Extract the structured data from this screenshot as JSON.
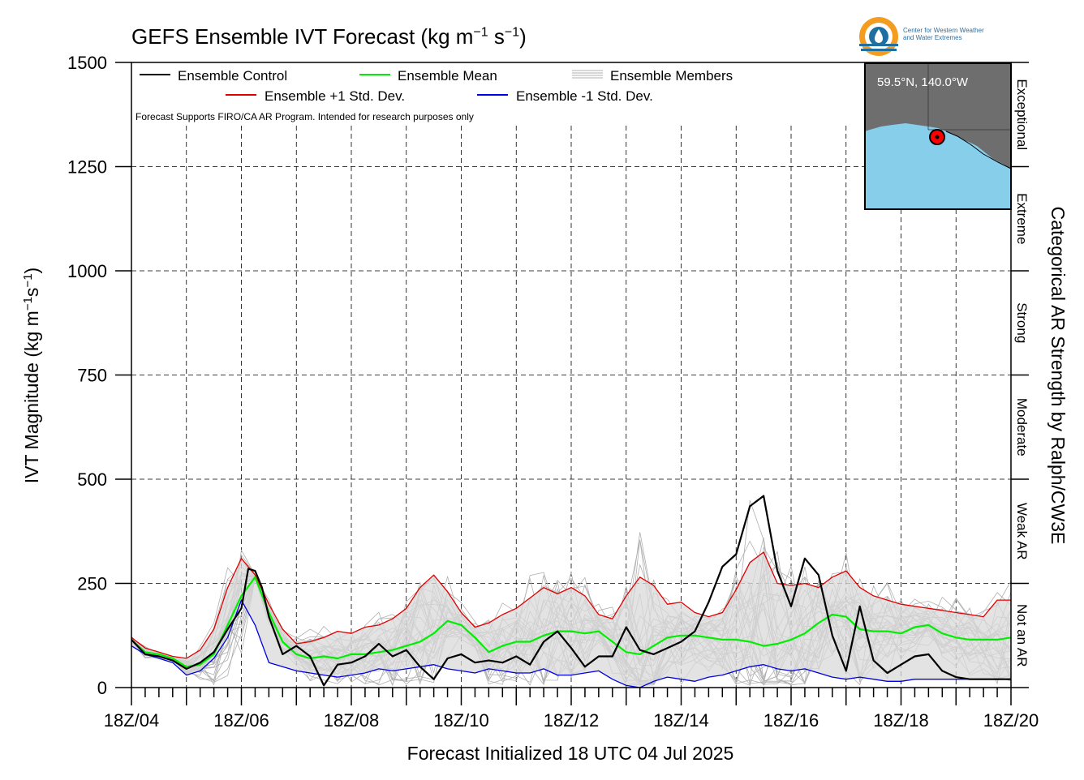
{
  "header": {
    "title_main": "GEFS Ensemble IVT Forecast (kg m",
    "title_exp1": "−1",
    "title_mid": " s",
    "title_exp2": "−1",
    "title_end": ")"
  },
  "logo": {
    "line1": "Center for Western Weather",
    "line2": "and Water Extremes"
  },
  "inset": {
    "location_label": "59.5°N, 140.0°W"
  },
  "colors": {
    "control": "#000000",
    "mean": "#00ee00",
    "plus_std": "#e00000",
    "minus_std": "#0000e0",
    "members": "#b0b0b0",
    "spread_fill": "#d9d9d9",
    "ocean": "#87ceeb",
    "land": "#6e6e6e",
    "logo_orange": "#f39c1f",
    "logo_blue": "#1f6fa0"
  },
  "chart_data": {
    "type": "line",
    "title": "GEFS Ensemble IVT Forecast (kg m−1 s−1)",
    "xlabel": "Forecast Initialized 18 UTC 04 Jul 2025",
    "ylabel": "IVT Magnitude (kg m−1s−1)",
    "right_label": "Categorical AR Strength by Ralph/CW3E",
    "note": "Forecast Supports FIRO/CA AR Program. Intended for research purposes only",
    "xlim": [
      0,
      384
    ],
    "ylim": [
      0,
      1500
    ],
    "x_unit": "forecast hour",
    "yticks": [
      0,
      250,
      500,
      750,
      1000,
      1250,
      1500
    ],
    "xticks": [
      {
        "x": 0,
        "label": "18Z/04"
      },
      {
        "x": 48,
        "label": "18Z/06"
      },
      {
        "x": 96,
        "label": "18Z/08"
      },
      {
        "x": 144,
        "label": "18Z/10"
      },
      {
        "x": 192,
        "label": "18Z/12"
      },
      {
        "x": 240,
        "label": "18Z/14"
      },
      {
        "x": 288,
        "label": "18Z/16"
      },
      {
        "x": 336,
        "label": "18Z/18"
      },
      {
        "x": 384,
        "label": "18Z/20"
      }
    ],
    "categories": [
      {
        "label": "Not an AR",
        "from": 0,
        "to": 250
      },
      {
        "label": "Weak AR",
        "from": 250,
        "to": 500
      },
      {
        "label": "Moderate",
        "from": 500,
        "to": 750
      },
      {
        "label": "Strong",
        "from": 750,
        "to": 1000
      },
      {
        "label": "Extreme",
        "from": 1000,
        "to": 1250
      },
      {
        "label": "Exceptional",
        "from": 1250,
        "to": 1500
      }
    ],
    "legend": [
      {
        "name": "Ensemble Control",
        "key": "control"
      },
      {
        "name": "Ensemble Mean",
        "key": "mean"
      },
      {
        "name": "Ensemble Members",
        "key": "members"
      },
      {
        "name": "Ensemble +1 Std. Dev.",
        "key": "plus_std"
      },
      {
        "name": "Ensemble -1 Std. Dev.",
        "key": "minus_std"
      }
    ],
    "series": [
      {
        "key": "control",
        "x": [
          0,
          6,
          12,
          18,
          24,
          30,
          36,
          42,
          48,
          51,
          54,
          57,
          60,
          66,
          72,
          78,
          84,
          90,
          96,
          102,
          108,
          114,
          120,
          126,
          132,
          138,
          144,
          150,
          156,
          162,
          168,
          174,
          180,
          186,
          192,
          198,
          204,
          210,
          216,
          222,
          228,
          234,
          240,
          246,
          252,
          258,
          264,
          270,
          276,
          282,
          288,
          294,
          300,
          306,
          312,
          318,
          324,
          330,
          336,
          342,
          348,
          354,
          360,
          366,
          372,
          378,
          384
        ],
        "y": [
          115,
          80,
          75,
          65,
          45,
          60,
          85,
          140,
          190,
          285,
          280,
          240,
          170,
          80,
          100,
          75,
          5,
          55,
          60,
          75,
          105,
          75,
          90,
          50,
          20,
          70,
          80,
          60,
          65,
          60,
          75,
          55,
          110,
          135,
          95,
          50,
          75,
          75,
          145,
          90,
          80,
          95,
          110,
          135,
          205,
          290,
          320,
          435,
          460,
          280,
          195,
          310,
          270,
          125,
          40,
          195,
          65,
          35,
          55,
          75,
          80,
          40,
          25,
          20,
          20,
          20,
          20
        ]
      },
      {
        "key": "mean",
        "x": [
          0,
          6,
          12,
          18,
          24,
          30,
          36,
          42,
          48,
          54,
          60,
          66,
          72,
          78,
          84,
          90,
          96,
          102,
          108,
          114,
          120,
          126,
          132,
          138,
          144,
          150,
          156,
          162,
          168,
          174,
          180,
          186,
          192,
          198,
          204,
          210,
          216,
          222,
          228,
          234,
          240,
          246,
          252,
          258,
          264,
          270,
          276,
          282,
          288,
          294,
          300,
          306,
          312,
          318,
          324,
          330,
          336,
          342,
          348,
          354,
          360,
          366,
          372,
          378,
          384
        ],
        "y": [
          115,
          85,
          80,
          70,
          50,
          55,
          80,
          150,
          220,
          265,
          180,
          110,
          80,
          70,
          75,
          70,
          80,
          80,
          85,
          90,
          100,
          110,
          130,
          160,
          150,
          120,
          85,
          100,
          110,
          110,
          125,
          135,
          135,
          130,
          135,
          110,
          85,
          80,
          100,
          120,
          125,
          125,
          120,
          115,
          115,
          110,
          100,
          105,
          115,
          130,
          155,
          175,
          170,
          140,
          135,
          135,
          130,
          145,
          150,
          130,
          120,
          115,
          115,
          115,
          120
        ]
      },
      {
        "key": "plus_std",
        "x": [
          0,
          6,
          12,
          18,
          24,
          30,
          36,
          42,
          48,
          54,
          60,
          66,
          72,
          78,
          84,
          90,
          96,
          102,
          108,
          114,
          120,
          126,
          132,
          138,
          144,
          150,
          156,
          162,
          168,
          174,
          180,
          186,
          192,
          198,
          204,
          210,
          216,
          222,
          228,
          234,
          240,
          246,
          252,
          258,
          264,
          270,
          276,
          282,
          288,
          294,
          300,
          306,
          312,
          318,
          324,
          330,
          336,
          342,
          348,
          354,
          360,
          366,
          372,
          378,
          384
        ],
        "y": [
          120,
          95,
          85,
          75,
          70,
          90,
          140,
          240,
          310,
          270,
          200,
          140,
          105,
          110,
          120,
          135,
          130,
          145,
          150,
          165,
          190,
          240,
          270,
          230,
          180,
          145,
          155,
          175,
          190,
          215,
          240,
          225,
          240,
          220,
          175,
          165,
          220,
          265,
          245,
          200,
          205,
          180,
          170,
          180,
          235,
          300,
          325,
          250,
          245,
          250,
          240,
          265,
          280,
          240,
          220,
          210,
          200,
          195,
          190,
          185,
          180,
          175,
          170,
          210,
          210
        ]
      },
      {
        "key": "minus_std",
        "x": [
          0,
          6,
          12,
          18,
          24,
          30,
          36,
          42,
          48,
          54,
          60,
          66,
          72,
          78,
          84,
          90,
          96,
          102,
          108,
          114,
          120,
          126,
          132,
          138,
          144,
          150,
          156,
          162,
          168,
          174,
          180,
          186,
          192,
          198,
          204,
          210,
          216,
          222,
          228,
          234,
          240,
          246,
          252,
          258,
          264,
          270,
          276,
          282,
          288,
          294,
          300,
          306,
          312,
          318,
          324,
          330,
          336,
          342,
          348,
          354,
          360,
          366,
          372,
          378,
          384
        ],
        "y": [
          100,
          80,
          70,
          60,
          30,
          40,
          70,
          120,
          210,
          150,
          60,
          50,
          40,
          35,
          30,
          25,
          30,
          35,
          45,
          40,
          45,
          50,
          55,
          45,
          40,
          35,
          45,
          40,
          35,
          35,
          45,
          30,
          30,
          35,
          40,
          20,
          5,
          0,
          15,
          25,
          20,
          15,
          25,
          30,
          40,
          50,
          55,
          45,
          40,
          45,
          35,
          25,
          20,
          25,
          20,
          15,
          15,
          20,
          20,
          20,
          20,
          20,
          20,
          20,
          20
        ]
      }
    ]
  },
  "members_count": 30
}
